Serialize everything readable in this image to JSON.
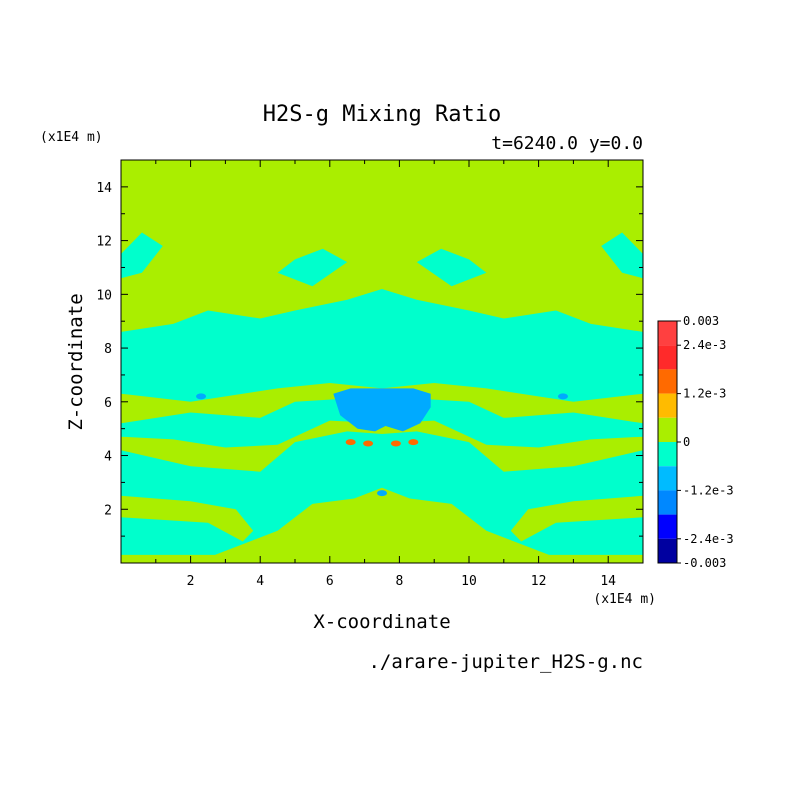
{
  "chart_data": {
    "type": "heatmap",
    "title": "H2S-g Mixing Ratio",
    "subtitle": "t=6240.0 y=0.0",
    "xlabel": "X-coordinate",
    "ylabel": "Z-coordinate",
    "x_unit": "(x1E4 m)",
    "y_unit": "(x1E4 m)",
    "source_file": "./arare-jupiter_H2S-g.nc",
    "xlim": [
      0,
      15
    ],
    "ylim": [
      0,
      15
    ],
    "x_ticks": [
      2,
      4,
      6,
      8,
      10,
      12,
      14
    ],
    "y_ticks": [
      2,
      4,
      6,
      8,
      10,
      12,
      14
    ],
    "x_tick_labels": [
      "2",
      "4",
      "6",
      "8",
      "10",
      "12",
      "14"
    ],
    "y_tick_labels": [
      "2",
      "4",
      "6",
      "8",
      "10",
      "12",
      "14"
    ],
    "background_value": 0,
    "colorbar": {
      "range": [
        -0.003,
        0.003
      ],
      "labels": [
        "0.003",
        "2.4e-3",
        "1.2e-3",
        "0",
        "-1.2e-3",
        "-2.4e-3",
        "-0.003"
      ],
      "label_values": [
        0.003,
        0.0024,
        0.0012,
        0,
        -0.0012,
        -0.0024,
        -0.003
      ],
      "levels": [
        {
          "from": 0.0024,
          "to": 0.003,
          "color": "#ff4040"
        },
        {
          "from": 0.0018,
          "to": 0.0024,
          "color": "#ff2a2a"
        },
        {
          "from": 0.0012,
          "to": 0.0018,
          "color": "#ff6a00"
        },
        {
          "from": 0.0006,
          "to": 0.0012,
          "color": "#ffbb00"
        },
        {
          "from": 0.0,
          "to": 0.0006,
          "color": "#aaee00"
        },
        {
          "from": -0.0006,
          "to": 0.0,
          "color": "#00ffcc"
        },
        {
          "from": -0.0012,
          "to": -0.0006,
          "color": "#00bbff"
        },
        {
          "from": -0.0018,
          "to": -0.0012,
          "color": "#0088ff"
        },
        {
          "from": -0.0024,
          "to": -0.0018,
          "color": "#0000ff"
        },
        {
          "from": -0.003,
          "to": -0.0024,
          "color": "#0000a0"
        }
      ]
    },
    "regions": [
      {
        "value": -0.0003,
        "color": "#00ffcc",
        "polygon": [
          [
            0,
            0.3
          ],
          [
            0,
            4.2
          ],
          [
            2,
            3.6
          ],
          [
            4,
            3.4
          ],
          [
            5,
            4.5
          ],
          [
            6.5,
            4.9
          ],
          [
            7.5,
            4.8
          ],
          [
            8.5,
            4.9
          ],
          [
            10,
            4.5
          ],
          [
            11,
            3.4
          ],
          [
            13,
            3.6
          ],
          [
            15,
            4.2
          ],
          [
            15,
            0.3
          ],
          [
            12.3,
            0.3
          ],
          [
            10.5,
            1.2
          ],
          [
            9.5,
            2.2
          ],
          [
            8.3,
            2.4
          ],
          [
            7.5,
            2.8
          ],
          [
            6.7,
            2.4
          ],
          [
            5.5,
            2.2
          ],
          [
            4.5,
            1.2
          ],
          [
            2.7,
            0.3
          ]
        ]
      },
      {
        "value": 0.0003,
        "color": "#aaee00",
        "polygon": [
          [
            0,
            2.5
          ],
          [
            2,
            2.3
          ],
          [
            3.3,
            2
          ],
          [
            3.8,
            1.2
          ],
          [
            3.5,
            0.8
          ],
          [
            2.5,
            1.5
          ],
          [
            0,
            1.7
          ]
        ]
      },
      {
        "value": 0.0003,
        "color": "#aaee00",
        "polygon": [
          [
            15,
            2.5
          ],
          [
            13,
            2.3
          ],
          [
            11.7,
            2
          ],
          [
            11.2,
            1.2
          ],
          [
            11.5,
            0.8
          ],
          [
            12.5,
            1.5
          ],
          [
            15,
            1.7
          ]
        ]
      },
      {
        "value": -0.0003,
        "color": "#00ffcc",
        "polygon": [
          [
            0,
            4.7
          ],
          [
            1.5,
            4.6
          ],
          [
            3,
            4.3
          ],
          [
            4.5,
            4.4
          ],
          [
            6,
            5.3
          ],
          [
            7.5,
            5.2
          ],
          [
            9,
            5.3
          ],
          [
            10.5,
            4.4
          ],
          [
            12,
            4.3
          ],
          [
            13.5,
            4.6
          ],
          [
            15,
            4.7
          ],
          [
            15,
            5.2
          ],
          [
            13,
            5.6
          ],
          [
            11,
            5.4
          ],
          [
            10,
            6.0
          ],
          [
            7.5,
            6.2
          ],
          [
            5,
            6.0
          ],
          [
            4,
            5.4
          ],
          [
            2,
            5.6
          ],
          [
            0,
            5.2
          ]
        ]
      },
      {
        "value": -0.0003,
        "color": "#00ffcc",
        "polygon": [
          [
            0,
            6.3
          ],
          [
            2,
            6.0
          ],
          [
            4.5,
            6.5
          ],
          [
            6,
            6.7
          ],
          [
            7.5,
            6.5
          ],
          [
            9,
            6.7
          ],
          [
            10.5,
            6.5
          ],
          [
            13,
            6.0
          ],
          [
            15,
            6.3
          ],
          [
            15,
            8.6
          ],
          [
            13.5,
            8.9
          ],
          [
            12.5,
            9.4
          ],
          [
            11,
            9.1
          ],
          [
            10,
            9.4
          ],
          [
            8.5,
            9.8
          ],
          [
            7.5,
            10.2
          ],
          [
            6.5,
            9.8
          ],
          [
            5,
            9.4
          ],
          [
            4,
            9.1
          ],
          [
            2.5,
            9.4
          ],
          [
            1.5,
            8.9
          ],
          [
            0,
            8.6
          ]
        ]
      },
      {
        "value": -0.0003,
        "color": "#00ffcc",
        "polygon": [
          [
            4.5,
            10.8
          ],
          [
            5.5,
            10.3
          ],
          [
            6.5,
            11.2
          ],
          [
            5.8,
            11.7
          ],
          [
            5,
            11.3
          ]
        ]
      },
      {
        "value": -0.0003,
        "color": "#00ffcc",
        "polygon": [
          [
            10.5,
            10.8
          ],
          [
            9.5,
            10.3
          ],
          [
            8.5,
            11.2
          ],
          [
            9.2,
            11.7
          ],
          [
            10,
            11.3
          ]
        ]
      },
      {
        "value": -0.0003,
        "color": "#00ffcc",
        "polygon": [
          [
            0,
            11.5
          ],
          [
            0.6,
            12.3
          ],
          [
            1.2,
            11.8
          ],
          [
            0.6,
            10.8
          ],
          [
            0,
            10.6
          ]
        ]
      },
      {
        "value": -0.0003,
        "color": "#00ffcc",
        "polygon": [
          [
            15,
            11.5
          ],
          [
            14.4,
            12.3
          ],
          [
            13.8,
            11.8
          ],
          [
            14.4,
            10.8
          ],
          [
            15,
            10.6
          ]
        ]
      },
      {
        "value": -0.0015,
        "color": "#00aaff",
        "polygon": [
          [
            6.1,
            6.3
          ],
          [
            6.3,
            5.5
          ],
          [
            6.8,
            5.0
          ],
          [
            7.3,
            4.9
          ],
          [
            7.6,
            5.1
          ],
          [
            8.1,
            4.9
          ],
          [
            8.6,
            5.2
          ],
          [
            8.9,
            5.8
          ],
          [
            8.9,
            6.3
          ],
          [
            8.4,
            6.5
          ],
          [
            7.5,
            6.5
          ],
          [
            6.6,
            6.5
          ]
        ]
      }
    ],
    "marks": [
      {
        "x": 6.6,
        "y": 4.5,
        "value": 0.0015,
        "color": "#ff6a00"
      },
      {
        "x": 7.1,
        "y": 4.45,
        "value": 0.0015,
        "color": "#ff6a00"
      },
      {
        "x": 7.9,
        "y": 4.45,
        "value": 0.0015,
        "color": "#ff6a00"
      },
      {
        "x": 8.4,
        "y": 4.5,
        "value": 0.0015,
        "color": "#ff6a00"
      },
      {
        "x": 2.3,
        "y": 6.2,
        "value": -0.0015,
        "color": "#00aaff"
      },
      {
        "x": 12.7,
        "y": 6.2,
        "value": -0.0015,
        "color": "#00aaff"
      },
      {
        "x": 7.5,
        "y": 2.6,
        "value": -0.0015,
        "color": "#00aaff"
      }
    ]
  }
}
